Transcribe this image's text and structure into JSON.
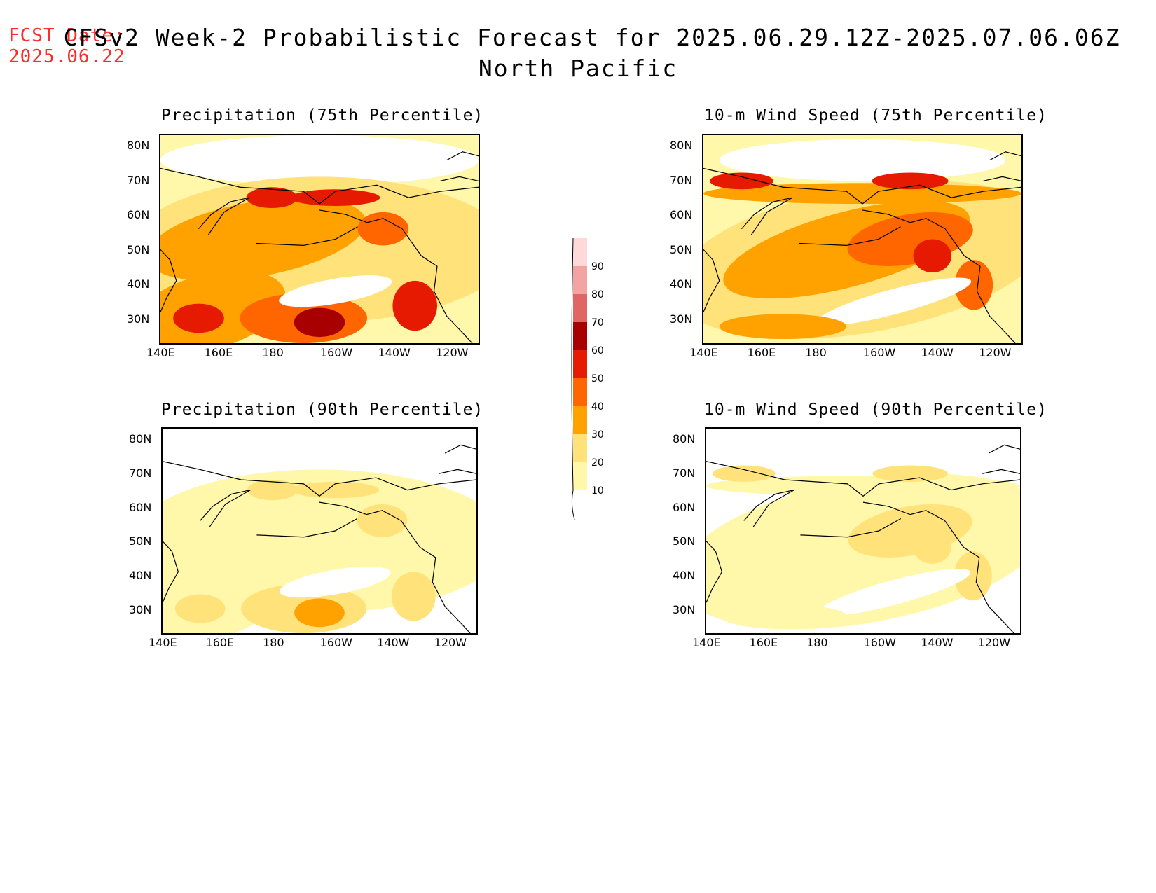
{
  "header": {
    "fcst_label": "FCST Date:",
    "fcst_date": "2025.06.22",
    "title": "CFSv2 Week-2 Probabilistic Forecast for 2025.06.29.12Z-2025.07.06.06Z",
    "region": "North Pacific"
  },
  "axes": {
    "lat_ticks": [
      "80N",
      "70N",
      "60N",
      "50N",
      "40N",
      "30N"
    ],
    "lon_ticks": [
      "140E",
      "160E",
      "180",
      "160W",
      "140W",
      "120W"
    ]
  },
  "panels": [
    {
      "id": "precip75",
      "title": "Precipitation (75th Percentile)",
      "intensity": 1.0
    },
    {
      "id": "wind75",
      "title": "10-m Wind Speed (75th Percentile)",
      "intensity": 1.0
    },
    {
      "id": "precip90",
      "title": "Precipitation (90th Percentile)",
      "intensity": 0.4
    },
    {
      "id": "wind90",
      "title": "10-m Wind Speed (90th Percentile)",
      "intensity": 0.4
    }
  ],
  "colorbar": {
    "levels": [
      "10",
      "20",
      "30",
      "40",
      "50",
      "60",
      "70",
      "80",
      "90"
    ],
    "colors": [
      "#fff7aa",
      "#ffe27a",
      "#ffa200",
      "#ff6600",
      "#e61a00",
      "#a80000",
      "#e06666",
      "#f4a3a3",
      "#ffd9d9"
    ]
  }
}
